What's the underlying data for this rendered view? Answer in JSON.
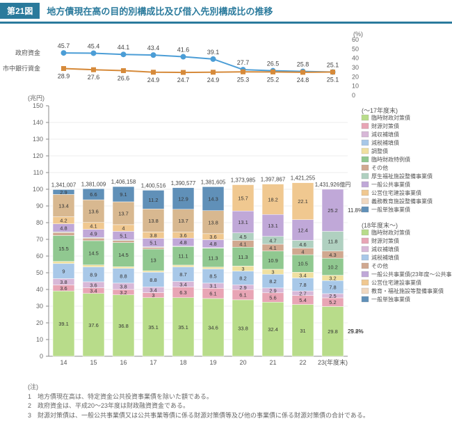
{
  "figure_number": "第21図",
  "title": "地方債現在高の目的別構成比及び借入先別構成比の推移",
  "line_chart": {
    "ylabel_right": "(%)",
    "ymax": 60,
    "ymin": 0,
    "ytick_step": 10,
    "series": [
      {
        "name": "政府資金",
        "label": "政府資金",
        "color": "#4b9dd6",
        "values": [
          45.7,
          45.4,
          44.1,
          43.4,
          41.6,
          39.1,
          27.7,
          26.5,
          25.8,
          25.1
        ],
        "marker": "circle"
      },
      {
        "name": "市中銀行資金",
        "label": "市中銀行資金",
        "color": "#d68a3a",
        "values": [
          28.9,
          27.6,
          26.6,
          24.9,
          24.7,
          24.9,
          25.3,
          25.2,
          24.8,
          25.1
        ],
        "marker": "square"
      }
    ]
  },
  "bar_chart": {
    "ylabel_left": "(兆円)",
    "ymax": 150,
    "ymin": 0,
    "ytick_step": 10,
    "years": [
      "14",
      "15",
      "16",
      "17",
      "18",
      "19",
      "20",
      "21",
      "22",
      "23(年度末)"
    ],
    "totals": [
      "1,341,007",
      "1,381,009",
      "1,406,158",
      "1,400,516",
      "1,390,577",
      "1,381,605",
      "1,373,985",
      "1,397,867",
      "1,421,255",
      "1,431,926億円"
    ],
    "segments": [
      {
        "name": "臨時財政対策債",
        "color": "#b8dc8a",
        "last_pct": "25.2%"
      },
      {
        "name": "財源対策債",
        "color": "#e8a5b5"
      },
      {
        "name": "減収補填債",
        "color": "#d8b8d8"
      },
      {
        "name": "減税補填債",
        "color": "#a8c8e8"
      },
      {
        "name": "調整債",
        "color": "#f0e0a0"
      },
      {
        "name": "臨時財政特例債",
        "color": "#90c890"
      },
      {
        "name": "その他",
        "color": "#d0a890"
      },
      {
        "name": "厚生福祉施設整備事業債",
        "color": "#b0d0c0"
      },
      {
        "name": "一般公共事業債",
        "color": "#c0a8d8",
        "last_pct": "11.8%"
      },
      {
        "name": "公営住宅建設事業債",
        "color": "#f0c890",
        "last_pct": "4.3%"
      },
      {
        "name": "義務教育施設整備事業債",
        "color": "#d8b890",
        "last_pct": "3.2%"
      },
      {
        "name": "一般単独事業債",
        "color": "#6090b8",
        "last_pct": "10.2%"
      }
    ],
    "stacks": [
      [
        39.1,
        3.6,
        3.8,
        9.0,
        1.3,
        15.5,
        1.8,
        0.4,
        4.8,
        4.2,
        13.4,
        2.9
      ],
      [
        37.6,
        3.4,
        3.6,
        8.9,
        1.2,
        14.5,
        1.5,
        0.4,
        4.9,
        4.1,
        13.6,
        6.6
      ],
      [
        36.8,
        3.2,
        3.8,
        8.8,
        1.0,
        14.5,
        1.2,
        0.4,
        5.1,
        4.0,
        13.7,
        9.1
      ],
      [
        35.1,
        3.0,
        3.4,
        8.8,
        0.9,
        13.0,
        1.0,
        0.3,
        5.1,
        3.8,
        13.8,
        11.2
      ],
      [
        35.1,
        6.3,
        3.4,
        8.7,
        1.1,
        11.1,
        0.02,
        0.2,
        4.8,
        3.6,
        13.7,
        12.9
      ],
      [
        34.6,
        6.1,
        3.1,
        8.5,
        1.1,
        11.3,
        0.1,
        0.2,
        4.8,
        3.6,
        13.8,
        14.3
      ],
      [
        33.8,
        6.1,
        2.9,
        8.2,
        3.0,
        11.3,
        4.1,
        4.5,
        13.1,
        15.7
      ],
      [
        32.4,
        5.6,
        2.9,
        8.2,
        3.0,
        10.9,
        4.1,
        4.7,
        13.1,
        18.2
      ],
      [
        31.0,
        5.4,
        2.7,
        7.8,
        3.4,
        10.5,
        4.0,
        4.6,
        12.4,
        22.1
      ],
      [
        29.8,
        5.2,
        2.5,
        7.8,
        3.2,
        10.2,
        4.3,
        11.8,
        25.2
      ]
    ],
    "bottom_label_last": "29.8%"
  },
  "legend1_title": "(～17年度末)",
  "legend1": [
    "臨時財政対策債",
    "財源対策債",
    "減収補填債",
    "減税補填債",
    "調整債",
    "臨時財政特例債",
    "その他",
    "厚生福祉施設整備事業債",
    "一般公共事業債",
    "公営住宅建設事業債",
    "義務教育施設整備事業債",
    "一般単独事業債"
  ],
  "legend1_colors": [
    "#b8dc8a",
    "#e8a5b5",
    "#d8b8d8",
    "#a8c8e8",
    "#f0e0a0",
    "#90c890",
    "#d0a890",
    "#b0d0c0",
    "#c0a8d8",
    "#f0c890",
    "#f0d8c0",
    "#6090b8"
  ],
  "legend2_title": "(18年度末～)",
  "legend2": [
    "臨時財政対策債",
    "財源対策債",
    "減収補填債",
    "減税補填債",
    "その他",
    "一般公共事業債(23年度～公共事業等債)",
    "公営住宅建設事業債",
    "教育・福祉施設等整備事業債",
    "一般単独事業債"
  ],
  "legend2_colors": [
    "#b8dc8a",
    "#e8a5b5",
    "#d8b8d8",
    "#a8c8e8",
    "#d0a890",
    "#c0a8d8",
    "#f0c890",
    "#f0d8c0",
    "#6090b8"
  ],
  "notes_label": "(注)",
  "notes": [
    "1　地方債現在高は、特定資金公共投資事業債を除いた額である。",
    "2　政府資金は、平成20～23年度は財政融資資金である。",
    "3　財源対策債は、一般公共事業債又は公共事業等債に係る財源対策債等及び他の事業債に係る財源対策債の合計である。"
  ]
}
